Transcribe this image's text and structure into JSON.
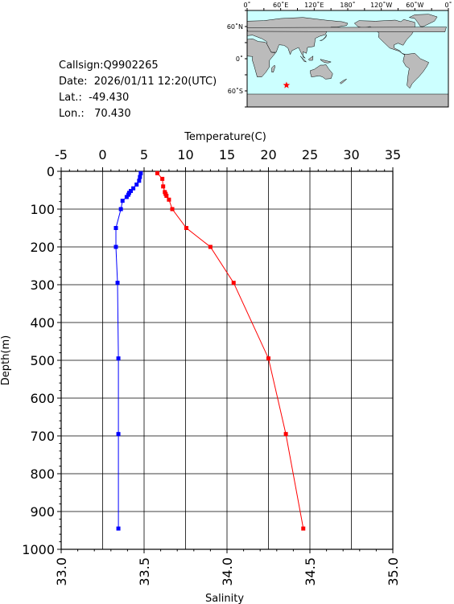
{
  "header": {
    "callsign": "Callsign:Q9902265",
    "date": "Date:  2026/01/11 12:20(UTC)",
    "lat": "Lat.:  -49.430",
    "lon": "Lon.:   70.430"
  },
  "map": {
    "top_labels": [
      "0˚",
      "60˚E",
      "120˚E",
      "180˚",
      "120˚W",
      "60˚W",
      "0˚"
    ],
    "left_labels": [
      "60˚N",
      "0˚",
      "60˚S"
    ],
    "ocean_color": "#ccffff",
    "land_color": "#bbbbbb",
    "marker_color": "#ff0000",
    "marker_lat": -49.43,
    "marker_lon": 70.43
  },
  "chart_data": {
    "type": "line",
    "xlabel_top": "Temperature(C)",
    "xlabel_bottom": "Salinity",
    "ylabel": "Depth(m)",
    "temperature_ticks": [
      "-5",
      "0",
      "5",
      "10",
      "15",
      "20",
      "25",
      "30",
      "35"
    ],
    "salinity_ticks": [
      "33.0",
      "33.5",
      "34.0",
      "34.5",
      "35.0"
    ],
    "depth_ticks": [
      "0",
      "100",
      "200",
      "300",
      "400",
      "500",
      "600",
      "700",
      "800",
      "900",
      "1000"
    ],
    "temperature_range": [
      -5,
      35
    ],
    "salinity_range": [
      33.0,
      35.0
    ],
    "depth_range": [
      0,
      1000
    ],
    "series": [
      {
        "name": "Temperature",
        "color": "#ff0000",
        "axis": "temperature",
        "points": [
          [
            6.6,
            5
          ],
          [
            7.2,
            20
          ],
          [
            7.3,
            40
          ],
          [
            7.5,
            55
          ],
          [
            7.6,
            60
          ],
          [
            7.7,
            65
          ],
          [
            8.0,
            75
          ],
          [
            8.4,
            100
          ],
          [
            10.1,
            150
          ],
          [
            13.0,
            200
          ],
          [
            15.8,
            295
          ],
          [
            20.0,
            495
          ],
          [
            22.1,
            695
          ],
          [
            24.2,
            945
          ]
        ]
      },
      {
        "name": "Salinity",
        "color": "#0000ff",
        "axis": "salinity",
        "points": [
          [
            33.48,
            5
          ],
          [
            33.475,
            15
          ],
          [
            33.47,
            25
          ],
          [
            33.455,
            35
          ],
          [
            33.435,
            45
          ],
          [
            33.42,
            52
          ],
          [
            33.41,
            57
          ],
          [
            33.405,
            62
          ],
          [
            33.395,
            68
          ],
          [
            33.37,
            78
          ],
          [
            33.36,
            100
          ],
          [
            33.33,
            150
          ],
          [
            33.33,
            200
          ],
          [
            33.34,
            295
          ],
          [
            33.345,
            495
          ],
          [
            33.345,
            695
          ],
          [
            33.345,
            945
          ]
        ]
      }
    ]
  }
}
